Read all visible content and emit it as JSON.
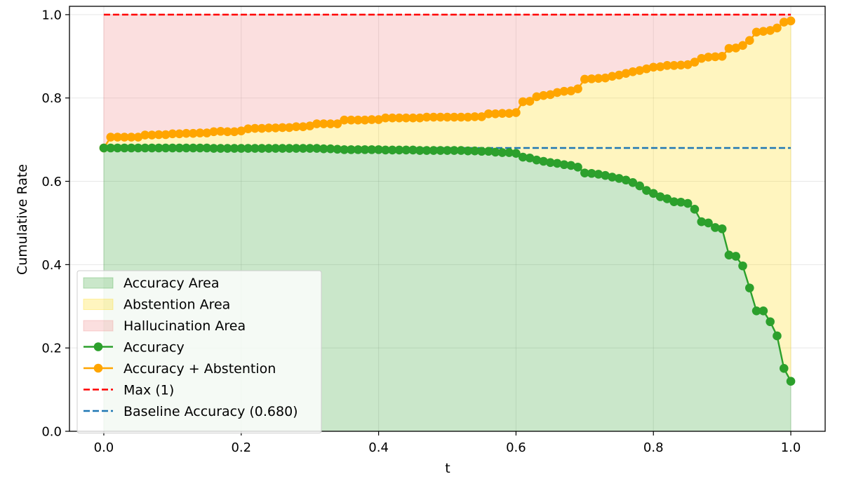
{
  "chart_data": {
    "type": "line",
    "title": "",
    "xlabel": "t",
    "ylabel": "Cumulative Rate",
    "xlim": [
      -0.05,
      1.05
    ],
    "ylim": [
      0.0,
      1.02
    ],
    "xticks": [
      "0.0",
      "0.2",
      "0.4",
      "0.6",
      "0.8",
      "1.0"
    ],
    "yticks": [
      "0.0",
      "0.2",
      "0.4",
      "0.6",
      "0.8",
      "1.0"
    ],
    "grid": true,
    "legend_position": "lower-left",
    "x": [
      0.0,
      0.01,
      0.02,
      0.03,
      0.04,
      0.05,
      0.06,
      0.07,
      0.08,
      0.09,
      0.1,
      0.11,
      0.12,
      0.13,
      0.14,
      0.15,
      0.16,
      0.17,
      0.18,
      0.19,
      0.2,
      0.21,
      0.22,
      0.23,
      0.24,
      0.25,
      0.26,
      0.27,
      0.28,
      0.29,
      0.3,
      0.31,
      0.32,
      0.33,
      0.34,
      0.35,
      0.36,
      0.37,
      0.38,
      0.39,
      0.4,
      0.41,
      0.42,
      0.43,
      0.44,
      0.45,
      0.46,
      0.47,
      0.48,
      0.49,
      0.5,
      0.51,
      0.52,
      0.53,
      0.54,
      0.55,
      0.56,
      0.57,
      0.58,
      0.59,
      0.6,
      0.61,
      0.62,
      0.63,
      0.64,
      0.65,
      0.66,
      0.67,
      0.68,
      0.69,
      0.7,
      0.71,
      0.72,
      0.73,
      0.74,
      0.75,
      0.76,
      0.77,
      0.78,
      0.79,
      0.8,
      0.81,
      0.82,
      0.83,
      0.84,
      0.85,
      0.86,
      0.87,
      0.88,
      0.89,
      0.9,
      0.91,
      0.92,
      0.93,
      0.94,
      0.95,
      0.96,
      0.97,
      0.98,
      0.99,
      1.0
    ],
    "series": [
      {
        "name": "Accuracy",
        "color": "#2ca02c",
        "values": [
          0.68,
          0.68,
          0.68,
          0.68,
          0.68,
          0.68,
          0.68,
          0.68,
          0.68,
          0.68,
          0.68,
          0.68,
          0.68,
          0.68,
          0.68,
          0.68,
          0.679,
          0.679,
          0.679,
          0.679,
          0.679,
          0.679,
          0.679,
          0.679,
          0.679,
          0.679,
          0.679,
          0.679,
          0.679,
          0.679,
          0.679,
          0.679,
          0.678,
          0.678,
          0.677,
          0.676,
          0.676,
          0.676,
          0.676,
          0.676,
          0.676,
          0.675,
          0.675,
          0.675,
          0.675,
          0.675,
          0.674,
          0.674,
          0.674,
          0.674,
          0.674,
          0.674,
          0.674,
          0.673,
          0.673,
          0.672,
          0.672,
          0.67,
          0.669,
          0.669,
          0.667,
          0.658,
          0.656,
          0.651,
          0.648,
          0.645,
          0.643,
          0.64,
          0.638,
          0.634,
          0.62,
          0.619,
          0.617,
          0.614,
          0.61,
          0.607,
          0.603,
          0.597,
          0.589,
          0.578,
          0.571,
          0.563,
          0.558,
          0.551,
          0.55,
          0.547,
          0.533,
          0.503,
          0.5,
          0.489,
          0.486,
          0.423,
          0.42,
          0.397,
          0.344,
          0.289,
          0.289,
          0.263,
          0.229,
          0.151,
          0.12
        ]
      },
      {
        "name": "Accuracy + Abstention",
        "color": "#ffa500",
        "values": [
          0.68,
          0.706,
          0.706,
          0.706,
          0.706,
          0.706,
          0.711,
          0.711,
          0.712,
          0.712,
          0.714,
          0.714,
          0.715,
          0.715,
          0.716,
          0.716,
          0.719,
          0.72,
          0.719,
          0.719,
          0.721,
          0.726,
          0.727,
          0.727,
          0.728,
          0.728,
          0.729,
          0.729,
          0.731,
          0.731,
          0.733,
          0.738,
          0.738,
          0.738,
          0.738,
          0.747,
          0.747,
          0.747,
          0.747,
          0.748,
          0.748,
          0.752,
          0.752,
          0.752,
          0.752,
          0.752,
          0.752,
          0.754,
          0.754,
          0.754,
          0.754,
          0.754,
          0.754,
          0.754,
          0.755,
          0.755,
          0.762,
          0.762,
          0.763,
          0.763,
          0.765,
          0.791,
          0.792,
          0.803,
          0.806,
          0.808,
          0.813,
          0.816,
          0.817,
          0.822,
          0.845,
          0.846,
          0.847,
          0.848,
          0.852,
          0.855,
          0.859,
          0.863,
          0.866,
          0.87,
          0.874,
          0.875,
          0.878,
          0.878,
          0.879,
          0.88,
          0.886,
          0.895,
          0.898,
          0.899,
          0.9,
          0.919,
          0.92,
          0.926,
          0.938,
          0.958,
          0.96,
          0.962,
          0.968,
          0.982,
          0.985
        ]
      }
    ],
    "reference_lines": [
      {
        "name": "Max (1)",
        "y": 1.0,
        "color": "#ff0000",
        "style": "dashed"
      },
      {
        "name": "Baseline Accuracy (0.680)",
        "y": 0.68,
        "color": "#1f77b4",
        "style": "dashed"
      }
    ],
    "areas": [
      {
        "name": "Accuracy Area",
        "color": "#2ca02c",
        "between": "0 to Accuracy"
      },
      {
        "name": "Abstention Area",
        "color": "#ffd700",
        "between": "Accuracy to Accuracy + Abstention"
      },
      {
        "name": "Hallucination Area",
        "color": "#f08080",
        "between": "Accuracy + Abstention to Max"
      }
    ],
    "legend": [
      {
        "label": "Accuracy Area",
        "kind": "patch",
        "color": "#2ca02c"
      },
      {
        "label": "Abstention Area",
        "kind": "patch",
        "color": "#ffd700"
      },
      {
        "label": "Hallucination Area",
        "kind": "patch",
        "color": "#f08080"
      },
      {
        "label": "Accuracy",
        "kind": "line-marker",
        "color": "#2ca02c"
      },
      {
        "label": "Accuracy + Abstention",
        "kind": "line-marker",
        "color": "#ffa500"
      },
      {
        "label": "Max (1)",
        "kind": "dashed",
        "color": "#ff0000"
      },
      {
        "label": "Baseline Accuracy (0.680)",
        "kind": "dashed",
        "color": "#1f77b4"
      }
    ]
  }
}
